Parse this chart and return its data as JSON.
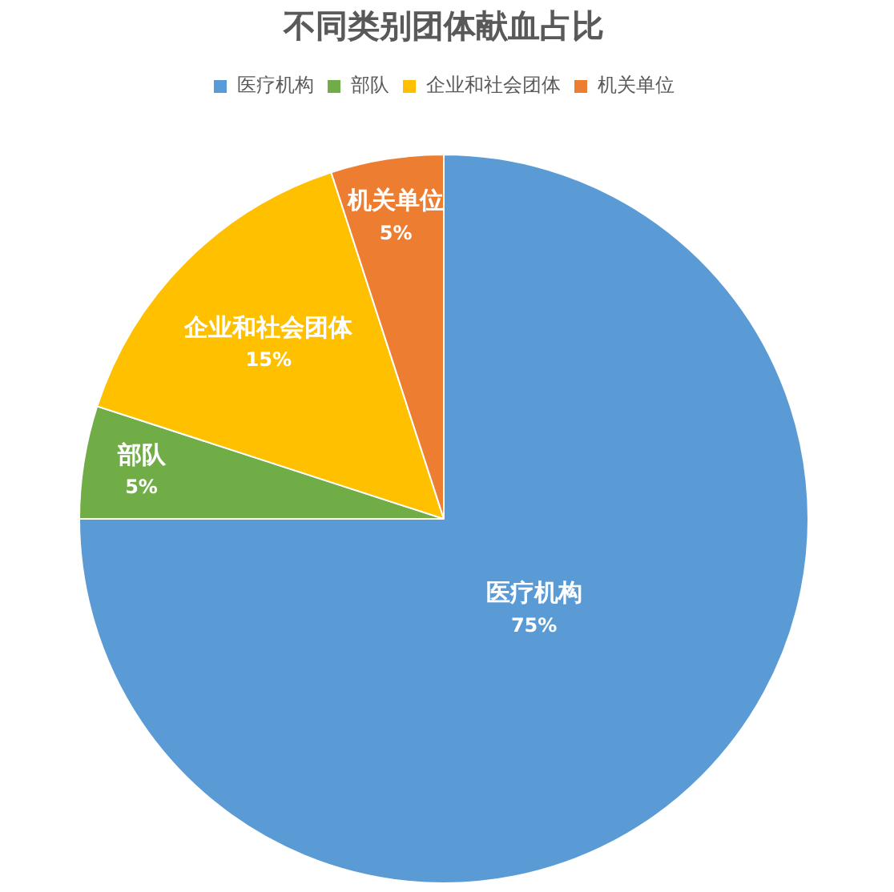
{
  "chart_data": {
    "type": "pie",
    "title": "不同类别团体献血占比",
    "categories": [
      "医疗机构",
      "部队",
      "企业和社会团体",
      "机关单位"
    ],
    "values": [
      75,
      5,
      15,
      5
    ],
    "colors": [
      "#5b9bd5",
      "#70ad47",
      "#ffc000",
      "#ed7d31"
    ],
    "value_labels": [
      "75%",
      "5%",
      "15%",
      "5%"
    ],
    "legend": "top"
  }
}
